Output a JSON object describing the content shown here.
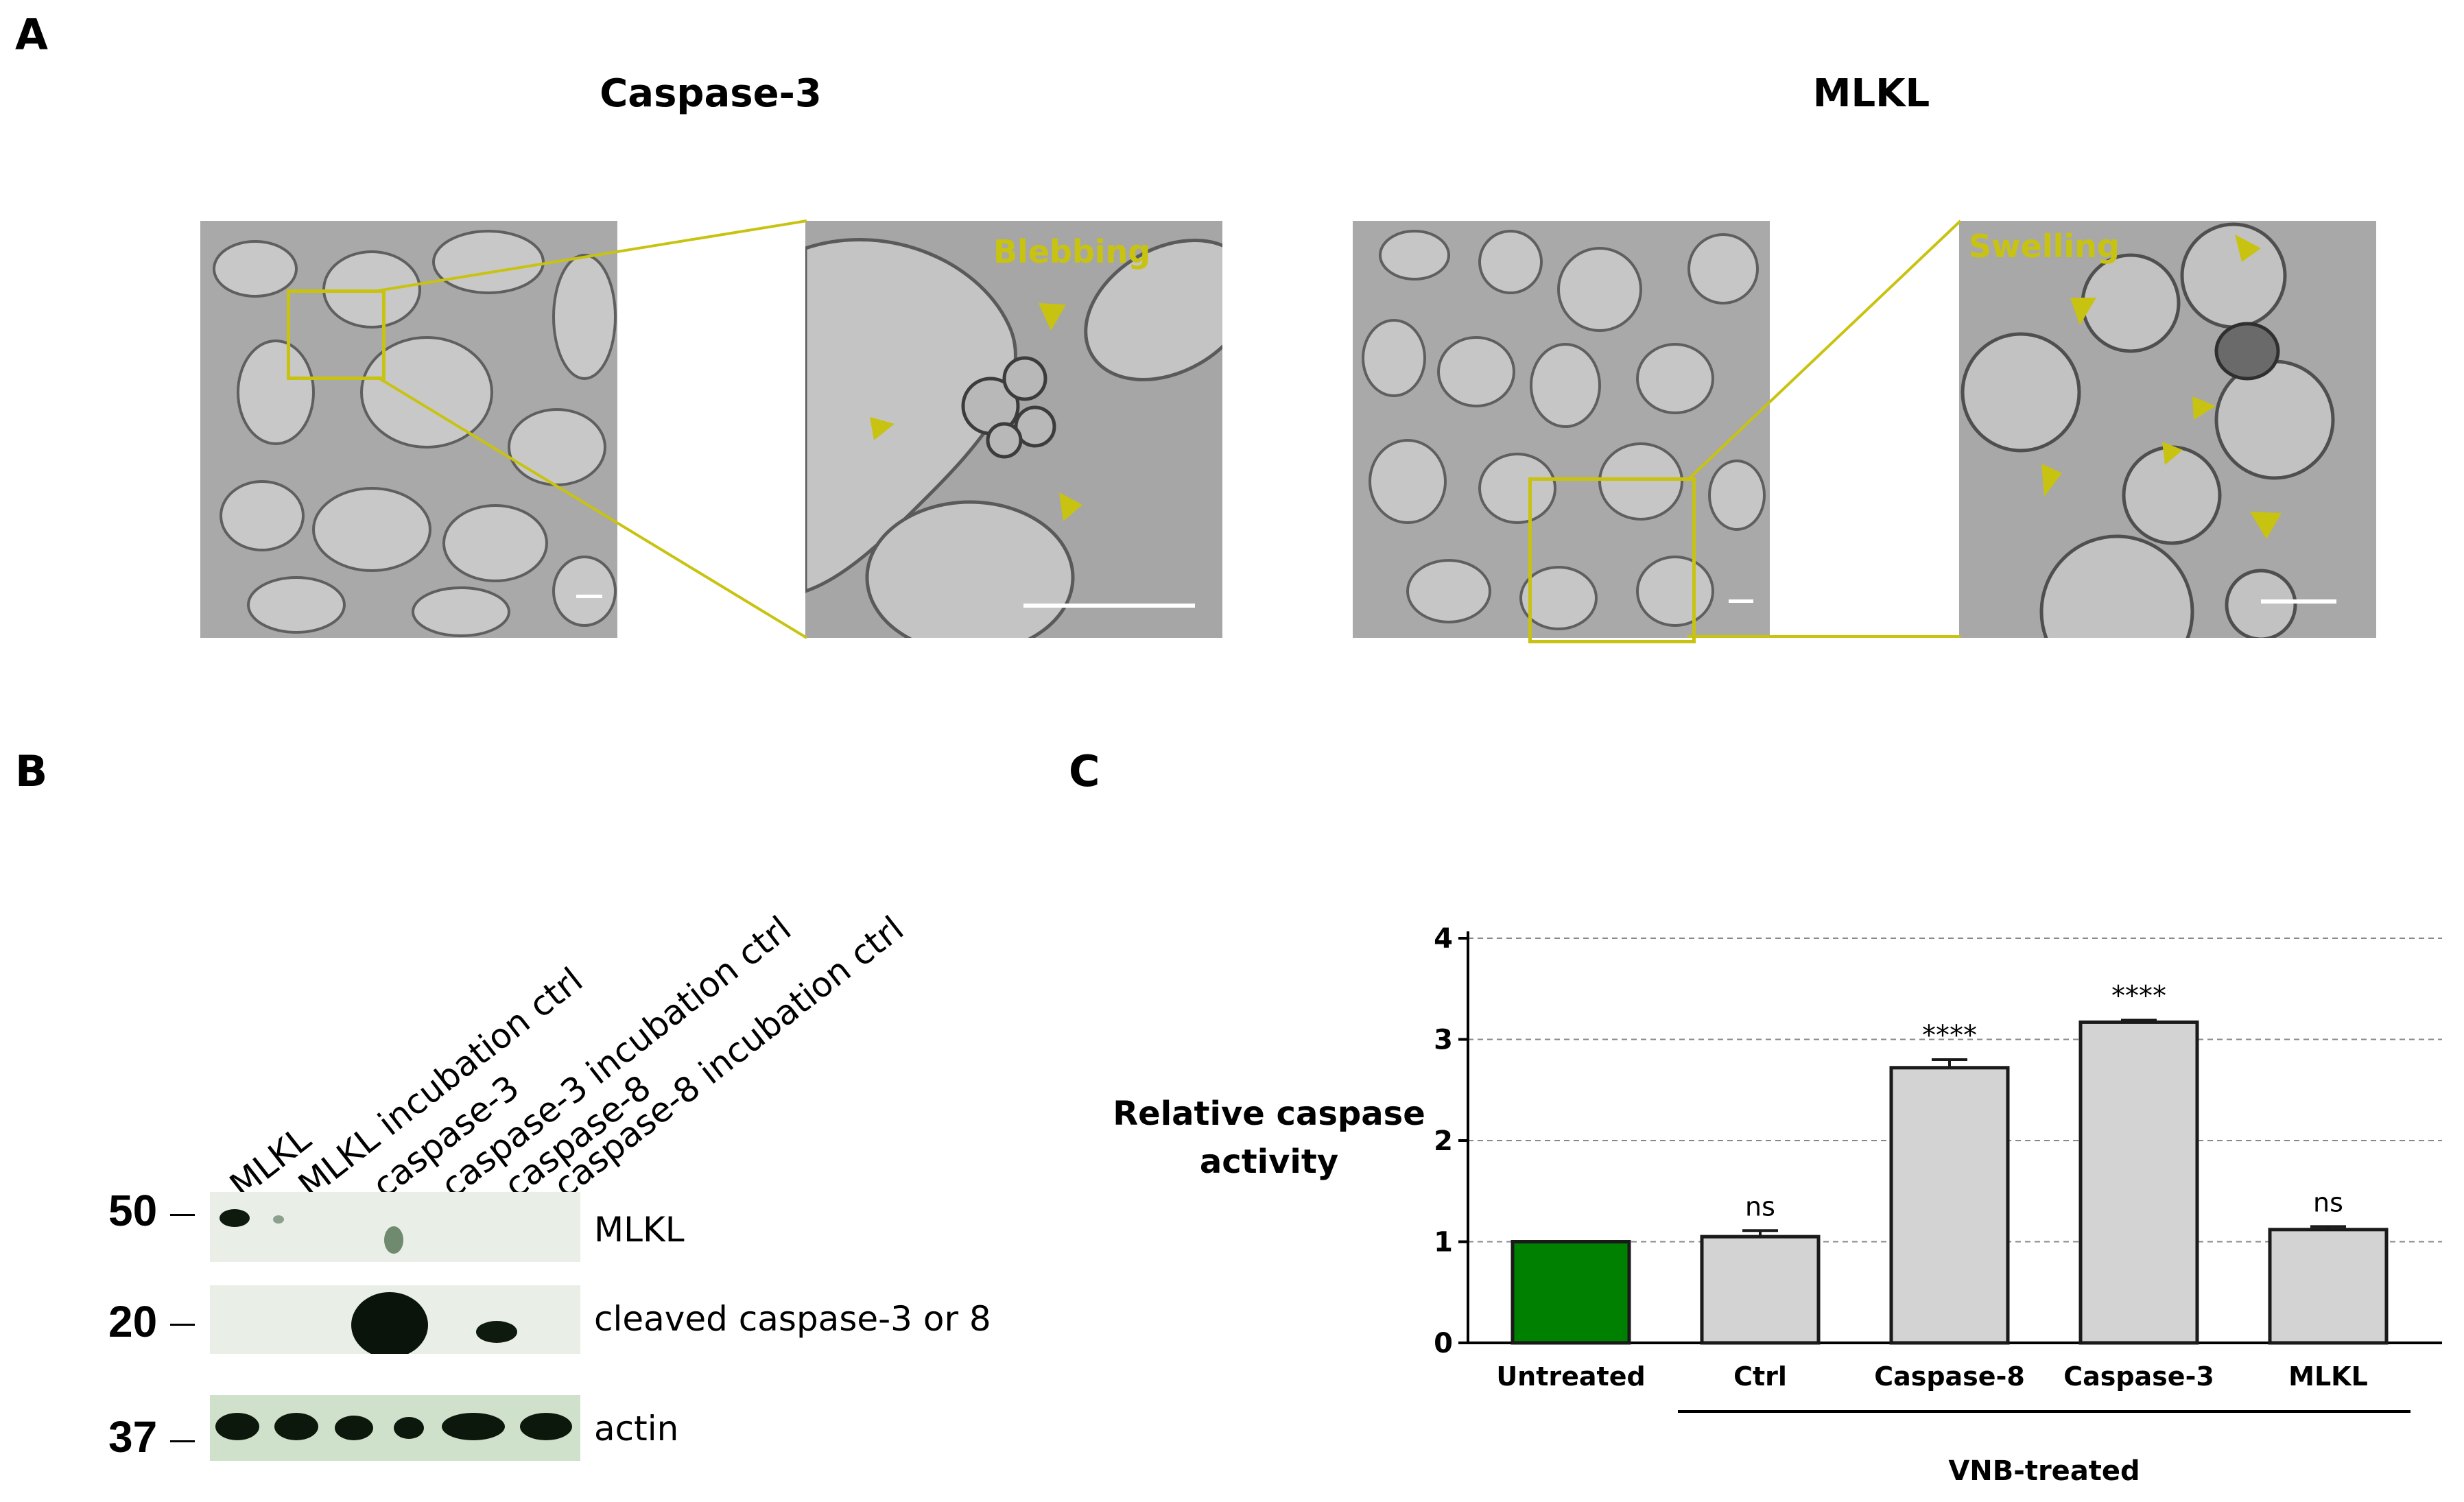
{
  "panels": {
    "a_label": "A",
    "b_label": "B",
    "c_label": "C"
  },
  "panel_a": {
    "left_title": "Caspase-3",
    "right_title": "MLKL",
    "left_annotation": "Blebbing",
    "right_annotation": "Swelling",
    "annotation_color": "#c8c310"
  },
  "panel_b": {
    "lanes": [
      "MLKL",
      "MLKL incubation ctrl",
      "caspase-3",
      "caspase-3 incubation ctrl",
      "caspase-8",
      "caspase-8 incubation ctrl"
    ],
    "markers": [
      "50",
      "20",
      "37"
    ],
    "bands": [
      "MLKL",
      "cleaved caspase-3 or 8",
      "actin"
    ]
  },
  "chart_data": {
    "type": "bar",
    "categories": [
      "Untreated",
      "Ctrl",
      "Caspase-8",
      "Caspase-3",
      "MLKL"
    ],
    "values": [
      1.0,
      1.05,
      2.72,
      3.17,
      1.12
    ],
    "errors": [
      0.0,
      0.06,
      0.08,
      0.02,
      0.03
    ],
    "significance": [
      "",
      "ns",
      "****",
      "****",
      "ns"
    ],
    "bar_colors": [
      "#008000",
      "#d3d3d3",
      "#d3d3d3",
      "#d3d3d3",
      "#d3d3d3"
    ],
    "ylabel": "Relative caspase activity",
    "ylabel_lines": [
      "Relative caspase",
      "activity"
    ],
    "group_label": "VNB-treated",
    "ylim": [
      0,
      4
    ],
    "yticks": [
      "0",
      "1",
      "2",
      "3",
      "4"
    ],
    "grid": "horizontal dashed"
  }
}
